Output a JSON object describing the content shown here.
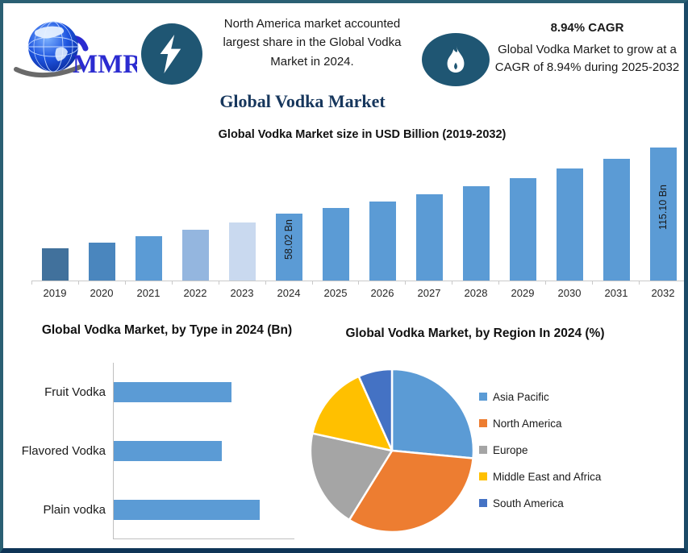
{
  "header": {
    "logo_text": "MMR",
    "headline": "North America market accounted largest share in the Global Vodka Market in 2024.",
    "cagr_title": "8.94% CAGR",
    "cagr_body": "Global Vodka Market to grow at a CAGR of 8.94% during 2025-2032"
  },
  "page_title": "Global Vodka Market",
  "colors": {
    "primary_blue": "#5B9BD5",
    "icon_circle_blue": "#1F5673",
    "title_navy": "#17375D",
    "logo_blue": "#2B2BD0",
    "border_teal": "#2A5F73",
    "border_navy": "#0E3456"
  },
  "chart_data": [
    {
      "type": "bar",
      "orientation": "vertical",
      "title": "Global Vodka Market size in USD Billion (2019-2032)",
      "unit": "USD Billion",
      "categories": [
        "2019",
        "2020",
        "2021",
        "2022",
        "2023",
        "2024",
        "2025",
        "2026",
        "2027",
        "2028",
        "2029",
        "2030",
        "2031",
        "2032"
      ],
      "values": [
        28.2,
        33.0,
        38.2,
        43.9,
        50.7,
        58.02,
        63.21,
        68.86,
        75.02,
        81.73,
        89.04,
        97.0,
        105.67,
        115.1
      ],
      "data_labels": {
        "2024": "58.02 Bn",
        "2032": "115.10 Bn"
      },
      "bar_colors": [
        "#41719C",
        "#4A86BE",
        "#5B9BD5",
        "#94B6DF",
        "#C9D9EF",
        "#5B9BD5",
        "#5B9BD5",
        "#5B9BD5",
        "#5B9BD5",
        "#5B9BD5",
        "#5B9BD5",
        "#5B9BD5",
        "#5B9BD5",
        "#5B9BD5"
      ],
      "ylim": [
        0,
        120
      ],
      "grid": false,
      "note": "values for 2019-2023 estimated from bar heights; 2025-2032 follow the stated 8.94% CAGR from 58.02 Bn in 2024"
    },
    {
      "type": "bar",
      "orientation": "horizontal",
      "title": "Global Vodka Market, by Type in 2024 (Bn)",
      "categories": [
        "Fruit Vodka",
        "Flavored Vodka",
        "Plain vodka"
      ],
      "values": [
        18.4,
        16.9,
        22.8
      ],
      "bar_color": "#5B9BD5",
      "grid": false,
      "note": "bars unlabeled in source; values estimated from relative bar lengths"
    },
    {
      "type": "pie",
      "title": "Global Vodka Market, by Region In 2024 (%)",
      "labels": [
        "Asia Pacific",
        "North America",
        "Europe",
        "Middle East and Africa",
        "South America"
      ],
      "values": [
        26.5,
        32.3,
        19.6,
        14.9,
        6.7
      ],
      "colors": [
        "#5B9BD5",
        "#ED7D31",
        "#A5A5A5",
        "#FFC000",
        "#4472C4"
      ],
      "legend_position": "right",
      "start_angle_deg_from_top": 0,
      "direction": "clockwise",
      "note": "slice percentages estimated from slice angles"
    }
  ]
}
